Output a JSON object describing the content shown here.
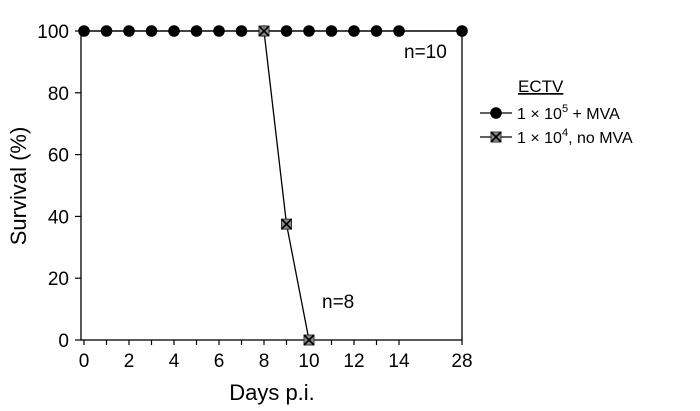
{
  "chart_data": {
    "type": "line",
    "xlabel": "Days p.i.",
    "ylabel": "Survival (%)",
    "ylim": [
      0,
      100
    ],
    "x_ticks": [
      "0",
      "2",
      "4",
      "6",
      "8",
      "10",
      "12",
      "14",
      "28"
    ],
    "y_ticks": [
      "0",
      "20",
      "40",
      "60",
      "80",
      "100"
    ],
    "legend": {
      "title": "ECTV",
      "placement": "right"
    },
    "series": [
      {
        "name": "1 × 10⁵ + MVA",
        "label_base": "1 × 10",
        "label_exp": "5",
        "label_rest": " + MVA",
        "marker": "filled-circle",
        "color": "#000000",
        "x": [
          0,
          1,
          2,
          3,
          4,
          5,
          6,
          7,
          8,
          9,
          10,
          11,
          12,
          13,
          14,
          28
        ],
        "y": [
          100,
          100,
          100,
          100,
          100,
          100,
          100,
          100,
          100,
          100,
          100,
          100,
          100,
          100,
          100,
          100
        ]
      },
      {
        "name": "1 × 10⁴, no MVA",
        "label_base": "1 × 10",
        "label_exp": "4",
        "label_rest": ", no MVA",
        "marker": "gray-square-x",
        "color": "#808080",
        "x": [
          8,
          9,
          10
        ],
        "y": [
          100,
          37.5,
          0
        ]
      }
    ],
    "annotations": [
      "n=10",
      "n=8"
    ],
    "grid": false
  }
}
